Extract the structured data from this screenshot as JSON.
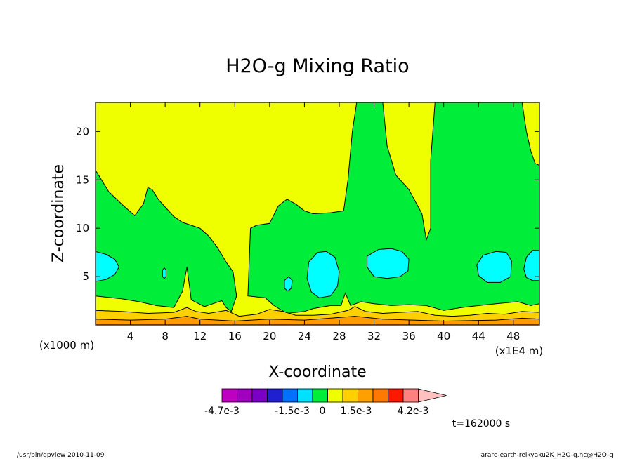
{
  "chart_data": {
    "type": "heatmap",
    "title": "H2O-g Mixing Ratio",
    "xlabel": "X-coordinate",
    "ylabel": "Z-coordinate",
    "x_unit_left": "(x1000 m)",
    "x_unit_right": "(x1E4 m)",
    "xlim": [
      0,
      51
    ],
    "ylim": [
      0,
      23
    ],
    "x_ticks": [
      4,
      8,
      12,
      16,
      20,
      24,
      28,
      32,
      36,
      40,
      44,
      48
    ],
    "y_ticks": [
      5,
      10,
      15,
      20
    ],
    "contour_levels": [
      0,
      0.0015,
      0.003,
      0.0045
    ],
    "level_colors": {
      "background": "#f0ff00",
      "low_band": "#ffd000",
      "bottom_band": "#ff9a00",
      "moist_region": "#00ee3a",
      "max_core": "#00ffff"
    },
    "regions": {
      "green": [
        [
          [
            0,
            16
          ],
          [
            1.5,
            13.8
          ],
          [
            3,
            12.5
          ],
          [
            4.5,
            11.3
          ],
          [
            5.5,
            12.5
          ],
          [
            6,
            14.2
          ],
          [
            6.5,
            14
          ],
          [
            7.2,
            13
          ],
          [
            8,
            12.2
          ],
          [
            9,
            11.2
          ],
          [
            10,
            10.6
          ],
          [
            11,
            10.3
          ],
          [
            12,
            10
          ],
          [
            13,
            9.2
          ],
          [
            14,
            8
          ],
          [
            15,
            6.5
          ],
          [
            15.8,
            5.5
          ],
          [
            16.2,
            3
          ],
          [
            15.6,
            1.4
          ],
          [
            15,
            1.8
          ],
          [
            14.5,
            2.5
          ],
          [
            13.5,
            2.2
          ],
          [
            12.5,
            1.9
          ],
          [
            11,
            2.6
          ],
          [
            10.5,
            6
          ],
          [
            10,
            3.5
          ],
          [
            9,
            1.8
          ],
          [
            7,
            2
          ],
          [
            5,
            2.4
          ],
          [
            3,
            2.7
          ],
          [
            0,
            3
          ]
        ],
        [
          [
            17.5,
            3
          ],
          [
            17.8,
            10
          ],
          [
            18.5,
            10.3
          ],
          [
            20,
            10.5
          ],
          [
            21,
            12.3
          ],
          [
            22,
            13
          ],
          [
            23,
            12.5
          ],
          [
            24,
            11.8
          ],
          [
            25,
            11.5
          ],
          [
            27,
            11.6
          ],
          [
            28.5,
            11.8
          ],
          [
            29,
            15
          ],
          [
            29.5,
            20
          ],
          [
            30,
            23
          ],
          [
            33,
            23
          ],
          [
            33.5,
            18.5
          ],
          [
            34.5,
            15.5
          ],
          [
            36,
            14
          ],
          [
            37.5,
            11.5
          ],
          [
            38,
            8.8
          ],
          [
            38.5,
            10
          ],
          [
            38.5,
            17
          ],
          [
            39,
            23
          ],
          [
            49,
            23
          ],
          [
            49.5,
            20
          ],
          [
            50,
            18
          ],
          [
            50.5,
            16.7
          ],
          [
            51,
            16.5
          ],
          [
            51,
            2.2
          ],
          [
            50,
            2
          ],
          [
            48.5,
            2.4
          ],
          [
            46,
            2.2
          ],
          [
            44,
            2
          ],
          [
            42,
            1.8
          ],
          [
            40,
            1.5
          ],
          [
            38,
            2
          ],
          [
            36,
            2.1
          ],
          [
            34,
            2
          ],
          [
            32,
            2.2
          ],
          [
            30.5,
            2.4
          ],
          [
            29.3,
            2
          ],
          [
            28.7,
            3.3
          ],
          [
            28.2,
            2
          ],
          [
            27,
            2
          ],
          [
            25,
            1.7
          ],
          [
            24,
            1.4
          ],
          [
            22,
            1.2
          ],
          [
            20.5,
            2
          ],
          [
            19.5,
            2.8
          ]
        ]
      ],
      "cyan": [
        [
          [
            0,
            7.6
          ],
          [
            1.2,
            7.3
          ],
          [
            2.2,
            6.8
          ],
          [
            2.7,
            6
          ],
          [
            2.2,
            5.2
          ],
          [
            1.2,
            4.7
          ],
          [
            0,
            4.5
          ]
        ],
        [
          [
            7.9,
            5.9
          ],
          [
            8.1,
            5.7
          ],
          [
            8.1,
            5
          ],
          [
            7.9,
            4.8
          ],
          [
            7.7,
            5
          ],
          [
            7.7,
            5.7
          ]
        ],
        [
          [
            22.2,
            5
          ],
          [
            22.6,
            4.6
          ],
          [
            22.5,
            3.8
          ],
          [
            22.1,
            3.5
          ],
          [
            21.7,
            3.8
          ],
          [
            21.7,
            4.6
          ]
        ],
        [
          [
            25.5,
            7.5
          ],
          [
            26.5,
            7.6
          ],
          [
            27.5,
            7
          ],
          [
            28,
            5.5
          ],
          [
            27.8,
            4
          ],
          [
            27,
            3
          ],
          [
            25.7,
            2.8
          ],
          [
            24.8,
            3.4
          ],
          [
            24.3,
            4.8
          ],
          [
            24.5,
            6.5
          ]
        ],
        [
          [
            31.2,
            7.1
          ],
          [
            32.5,
            7.8
          ],
          [
            34,
            7.9
          ],
          [
            35.2,
            7.6
          ],
          [
            36,
            6.8
          ],
          [
            35.9,
            5.6
          ],
          [
            35,
            5
          ],
          [
            33.5,
            4.8
          ],
          [
            32,
            5
          ],
          [
            31.2,
            6
          ]
        ],
        [
          [
            43.8,
            6.2
          ],
          [
            44.5,
            7.2
          ],
          [
            46,
            7.6
          ],
          [
            47.2,
            7.5
          ],
          [
            47.8,
            6.6
          ],
          [
            47.7,
            5
          ],
          [
            46.5,
            4.4
          ],
          [
            45,
            4.4
          ],
          [
            44,
            5.1
          ]
        ],
        [
          [
            51,
            7.7
          ],
          [
            50.2,
            7.7
          ],
          [
            49.5,
            7
          ],
          [
            49.2,
            5.8
          ],
          [
            49.5,
            4.9
          ],
          [
            50.2,
            4.6
          ],
          [
            51,
            4.6
          ]
        ]
      ],
      "orange_band_top": [
        [
          0,
          1.5
        ],
        [
          3,
          1.4
        ],
        [
          6,
          1.2
        ],
        [
          9,
          1.3
        ],
        [
          10.5,
          1.8
        ],
        [
          11.5,
          1.4
        ],
        [
          13,
          1.2
        ],
        [
          15,
          1.5
        ],
        [
          16.5,
          0.9
        ],
        [
          18.5,
          1.1
        ],
        [
          20,
          1.6
        ],
        [
          21.5,
          1.4
        ],
        [
          23,
          1
        ],
        [
          25,
          1
        ],
        [
          27,
          1.1
        ],
        [
          29,
          1.5
        ],
        [
          29.8,
          1.9
        ],
        [
          31,
          1.4
        ],
        [
          33,
          1.2
        ],
        [
          35,
          1.3
        ],
        [
          37,
          1.4
        ],
        [
          39,
          1
        ],
        [
          41,
          0.9
        ],
        [
          43,
          1
        ],
        [
          45,
          1.2
        ],
        [
          47,
          1.1
        ],
        [
          49,
          1.4
        ],
        [
          51,
          1.3
        ]
      ],
      "dark_band_top": [
        [
          0,
          0.6
        ],
        [
          4,
          0.5
        ],
        [
          8,
          0.6
        ],
        [
          10.5,
          0.9
        ],
        [
          12,
          0.6
        ],
        [
          16,
          0.4
        ],
        [
          20,
          0.6
        ],
        [
          24,
          0.5
        ],
        [
          29.8,
          0.9
        ],
        [
          33,
          0.6
        ],
        [
          40,
          0.4
        ],
        [
          46,
          0.5
        ],
        [
          49,
          0.7
        ],
        [
          51,
          0.6
        ]
      ]
    },
    "colorbar": {
      "colors": [
        "#c000c0",
        "#a000c0",
        "#7a00c8",
        "#2020d0",
        "#0070ff",
        "#00e0ff",
        "#00ee3a",
        "#f0ff00",
        "#ffd000",
        "#ffa000",
        "#ff7800",
        "#ff1800",
        "#ff8080"
      ],
      "labels": [
        "-4.7e-3",
        "-1.5e-3",
        "0",
        "1.5e-3",
        "4.2e-3"
      ]
    },
    "time_label": "t=162000 s"
  },
  "footer": {
    "left": "/usr/bin/gpview 2010-11-09",
    "right": "arare-earth-reikyaku2K_H2O-g.nc@H2O-g"
  }
}
